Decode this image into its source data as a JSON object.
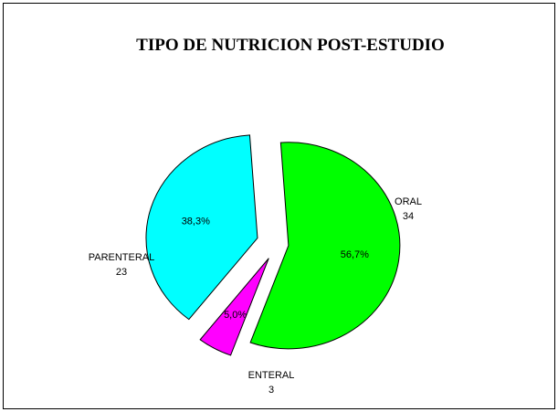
{
  "chart_data": {
    "type": "pie",
    "title": "TIPO DE NUTRICION POST-ESTUDIO",
    "slices": [
      {
        "label": "ORAL",
        "value": 34,
        "percent_label": "56,7%",
        "color": "#00ff00"
      },
      {
        "label": "ENTERAL",
        "value": 3,
        "percent_label": "5,0%",
        "color": "#ff00ff"
      },
      {
        "label": "PARENTERAL",
        "value": 23,
        "percent_label": "38,3%",
        "color": "#00ffff"
      }
    ],
    "exploded": true,
    "legend": "none"
  }
}
